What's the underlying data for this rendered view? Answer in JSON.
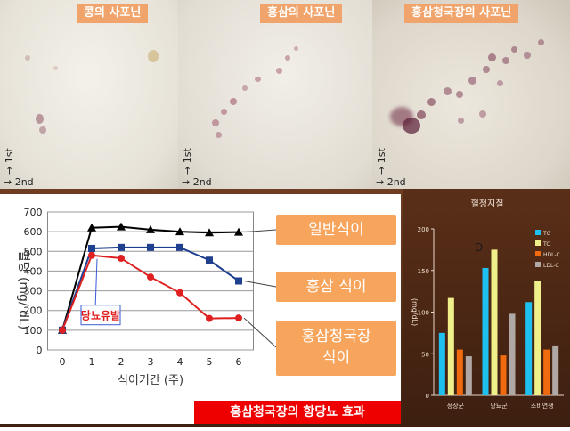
{
  "tlc_panels": [
    {
      "title": "콩의 사포닌",
      "axis1": "→ 1st",
      "axis2": "→ 2nd"
    },
    {
      "title": "홍삼의 사포닌",
      "axis1": "→ 1st",
      "axis2": "→ 2nd"
    },
    {
      "title": "홍삼청국장의 사포닌",
      "axis1": "→ 1st",
      "axis2": "→ 2nd"
    }
  ],
  "chart_data": [
    {
      "type": "line",
      "title": "홍삼청국장의 항당뇨 효과",
      "xlabel": "식이기간 (주)",
      "ylabel": "혈당 (mg/ dL)",
      "x": [
        0,
        1,
        2,
        3,
        4,
        5,
        6
      ],
      "xlim": [
        0,
        6
      ],
      "ylim": [
        0,
        700
      ],
      "yticks": [
        0,
        100,
        200,
        300,
        400,
        500,
        600,
        700
      ],
      "grid": true,
      "series": [
        {
          "name": "일반식이",
          "color": "#000000",
          "marker": "triangle",
          "values": [
            100,
            620,
            625,
            610,
            600,
            595,
            598
          ]
        },
        {
          "name": "홍삼 식이",
          "color": "#1f3f8f",
          "marker": "square",
          "values": [
            100,
            515,
            520,
            520,
            520,
            455,
            350
          ]
        },
        {
          "name": "홍삼청국장 식이",
          "color": "#e02020",
          "marker": "circle",
          "values": [
            100,
            480,
            465,
            370,
            290,
            160,
            162
          ]
        }
      ],
      "annotations": [
        {
          "text": "당뇨유발",
          "x": 1,
          "color": "#e02020"
        }
      ],
      "callout_labels": [
        "일반식이",
        "홍삼 식이",
        "홍삼청국장\n식이"
      ]
    },
    {
      "type": "bar",
      "title": "혈청지질",
      "ylabel": "(mg/dL)",
      "categories": [
        "정상군",
        "당뇨군",
        "소비연생"
      ],
      "ylim": [
        0,
        200
      ],
      "yticks": [
        0,
        50,
        100,
        150,
        200
      ],
      "legend_position": "top-right",
      "annotation": "D",
      "series": [
        {
          "name": "TG",
          "color": "#1ec0f0",
          "values": [
            75,
            153,
            112
          ]
        },
        {
          "name": "TC",
          "color": "#f0f08a",
          "values": [
            117,
            175,
            137
          ]
        },
        {
          "name": "HDL-C",
          "color": "#f06a10",
          "values": [
            55,
            48,
            55
          ]
        },
        {
          "name": "LDL-C",
          "color": "#b0a8a4",
          "values": [
            47,
            98,
            60
          ]
        }
      ]
    }
  ]
}
